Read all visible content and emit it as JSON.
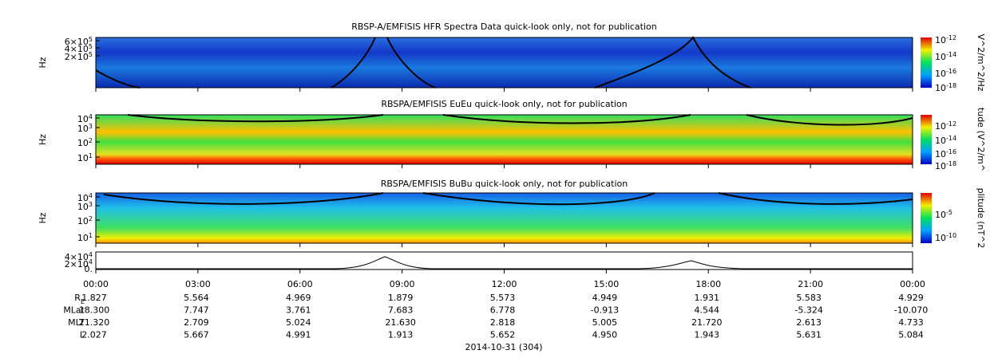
{
  "panels": [
    {
      "title": "RBSP-A/EMFISIS  HFR Spectra Data quick-look only, not for publication",
      "ylabel": "Hz",
      "yticks": [
        {
          "m": "6×10",
          "e": "5"
        },
        {
          "m": "4×10",
          "e": "5"
        },
        {
          "m": "2×10",
          "e": "5"
        }
      ],
      "colorbar_label": "V^2/m^2/Hz",
      "colorbar_ticks": [
        {
          "m": "10",
          "e": "-12"
        },
        {
          "m": "10",
          "e": "-14"
        },
        {
          "m": "10",
          "e": "-16"
        },
        {
          "m": "10",
          "e": "-18"
        }
      ]
    },
    {
      "title": "RBSPA/EMFISIS  EuEu quick-look only, not for publication",
      "ylabel": "Hz",
      "yticks": [
        {
          "m": "10",
          "e": "4"
        },
        {
          "m": "10",
          "e": "3"
        },
        {
          "m": "10",
          "e": "2"
        },
        {
          "m": "10",
          "e": "1"
        }
      ],
      "colorbar_label": "tude (V^2/m^",
      "colorbar_ticks": [
        {
          "m": "10",
          "e": "-12"
        },
        {
          "m": "10",
          "e": "-14"
        },
        {
          "m": "10",
          "e": "-16"
        },
        {
          "m": "10",
          "e": "-18"
        }
      ]
    },
    {
      "title": "RBSPA/EMFISIS  BuBu quick-look only, not for publication",
      "ylabel": "Hz",
      "yticks": [
        {
          "m": "10",
          "e": "4"
        },
        {
          "m": "10",
          "e": "3"
        },
        {
          "m": "10",
          "e": "2"
        },
        {
          "m": "10",
          "e": "1"
        }
      ],
      "colorbar_label": "plitude (nT^2",
      "colorbar_ticks": [
        {
          "m": "10",
          "e": "-5"
        },
        {
          "m": "10",
          "e": "-10"
        }
      ]
    }
  ],
  "line_panel": {
    "yticks": [
      {
        "m": "4×10",
        "e": "4"
      },
      {
        "m": "2×10",
        "e": "4"
      },
      "0."
    ]
  },
  "times": [
    "00:00",
    "03:00",
    "06:00",
    "09:00",
    "12:00",
    "15:00",
    "18:00",
    "21:00",
    "00:00"
  ],
  "ephemeris": [
    {
      "label": "R",
      "sub": "E",
      "values": [
        "1.827",
        "5.564",
        "4.969",
        "1.879",
        "5.573",
        "4.949",
        "1.931",
        "5.583",
        "4.929"
      ]
    },
    {
      "label": "MLat",
      "values": [
        "18.300",
        "7.747",
        "3.761",
        "7.683",
        "6.778",
        "-0.913",
        "4.544",
        "-5.324",
        "-10.070"
      ]
    },
    {
      "label": "MLT",
      "values": [
        "21.320",
        "2.709",
        "5.024",
        "21.630",
        "2.818",
        "5.005",
        "21.720",
        "2.613",
        "4.733"
      ]
    },
    {
      "label": "L",
      "values": [
        "2.027",
        "5.667",
        "4.991",
        "1.913",
        "5.652",
        "4.950",
        "1.943",
        "5.631",
        "5.084"
      ]
    }
  ],
  "date": "2014-10-31 (304)"
}
